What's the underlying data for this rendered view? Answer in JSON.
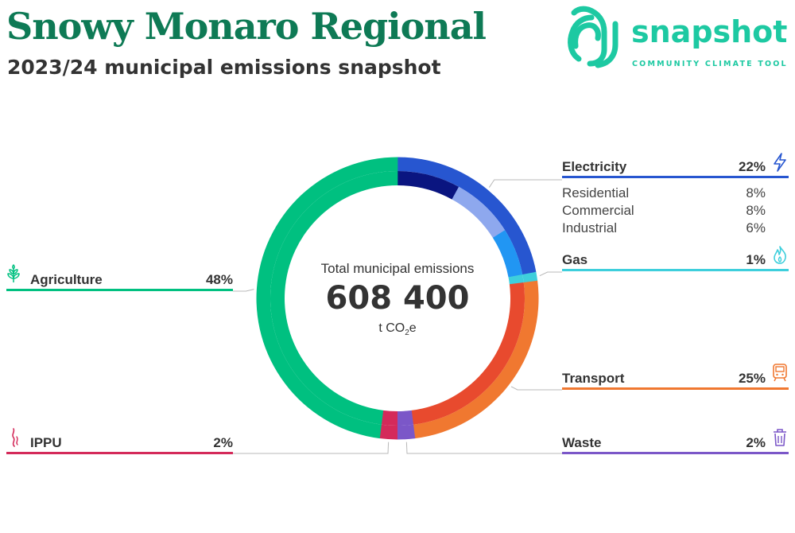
{
  "header": {
    "title": "Snowy Monaro Regional",
    "subtitle": "2023/24 municipal emissions snapshot"
  },
  "logo": {
    "word": "snapshot",
    "tagline": "COMMUNITY CLIMATE TOOL",
    "color": "#1dc9a2"
  },
  "center": {
    "label": "Total municipal emissions",
    "total": "608 400",
    "unit_prefix": "t CO",
    "unit_sub": "2",
    "unit_suffix": "e"
  },
  "chart_data": {
    "type": "pie",
    "donut": true,
    "total": 608400,
    "unit": "t CO2e",
    "categories": [
      {
        "name": "Electricity",
        "pct": "22%",
        "value": 22,
        "color": "#2756d0",
        "icon": "lightning-icon",
        "side": "right",
        "subcategories": [
          {
            "name": "Residential",
            "pct": "8%",
            "value": 8,
            "color": "#0a1580"
          },
          {
            "name": "Commercial",
            "pct": "8%",
            "value": 8,
            "color": "#8ea8ee"
          },
          {
            "name": "Industrial",
            "pct": "6%",
            "value": 6,
            "color": "#2196f3"
          }
        ]
      },
      {
        "name": "Gas",
        "pct": "1%",
        "value": 1,
        "color": "#3ecfdc",
        "icon": "flame-icon",
        "side": "right"
      },
      {
        "name": "Transport",
        "pct": "25%",
        "value": 25,
        "color": "#f07830",
        "icon": "train-icon",
        "side": "right",
        "inner_color": "#e84a2e"
      },
      {
        "name": "Waste",
        "pct": "2%",
        "value": 2,
        "color": "#7b57c8",
        "icon": "bin-icon",
        "side": "right"
      },
      {
        "name": "IPPU",
        "pct": "2%",
        "value": 2,
        "color": "#d42a5a",
        "icon": "smoke-icon",
        "side": "left"
      },
      {
        "name": "Agriculture",
        "pct": "48%",
        "value": 48,
        "color": "#00c080",
        "icon": "wheat-icon",
        "side": "left"
      }
    ]
  }
}
